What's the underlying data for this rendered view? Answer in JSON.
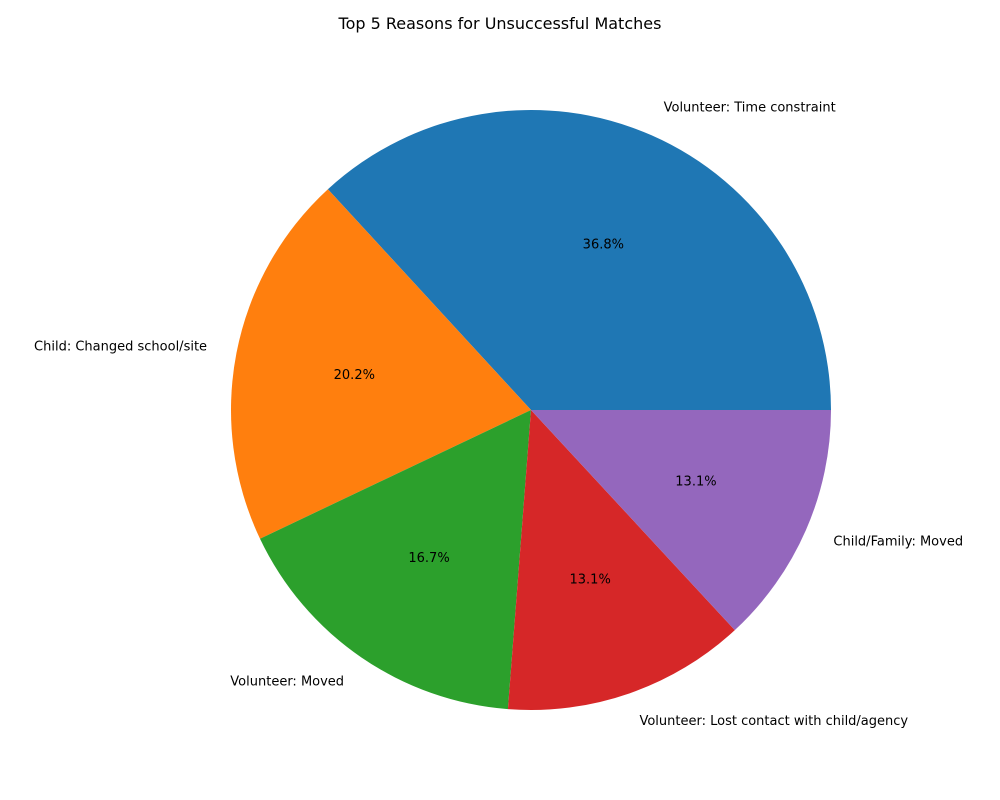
{
  "chart_data": {
    "type": "pie",
    "title": "Top 5 Reasons for Unsuccessful Matches",
    "start_angle_deg": 0,
    "direction": "counterclockwise",
    "slices": [
      {
        "label": "Volunteer: Time constraint",
        "value": 36.8,
        "pct_label": "36.8%",
        "color": "#1f77b4"
      },
      {
        "label": "Child: Changed school/site",
        "value": 20.2,
        "pct_label": "20.2%",
        "color": "#ff7f0e"
      },
      {
        "label": "Volunteer: Moved",
        "value": 16.7,
        "pct_label": "16.7%",
        "color": "#2ca02c"
      },
      {
        "label": "Volunteer: Lost contact with child/agency",
        "value": 13.1,
        "pct_label": "13.1%",
        "color": "#d62728"
      },
      {
        "label": "Child/Family: Moved",
        "value": 13.1,
        "pct_label": "13.1%",
        "color": "#9467bd"
      }
    ]
  }
}
